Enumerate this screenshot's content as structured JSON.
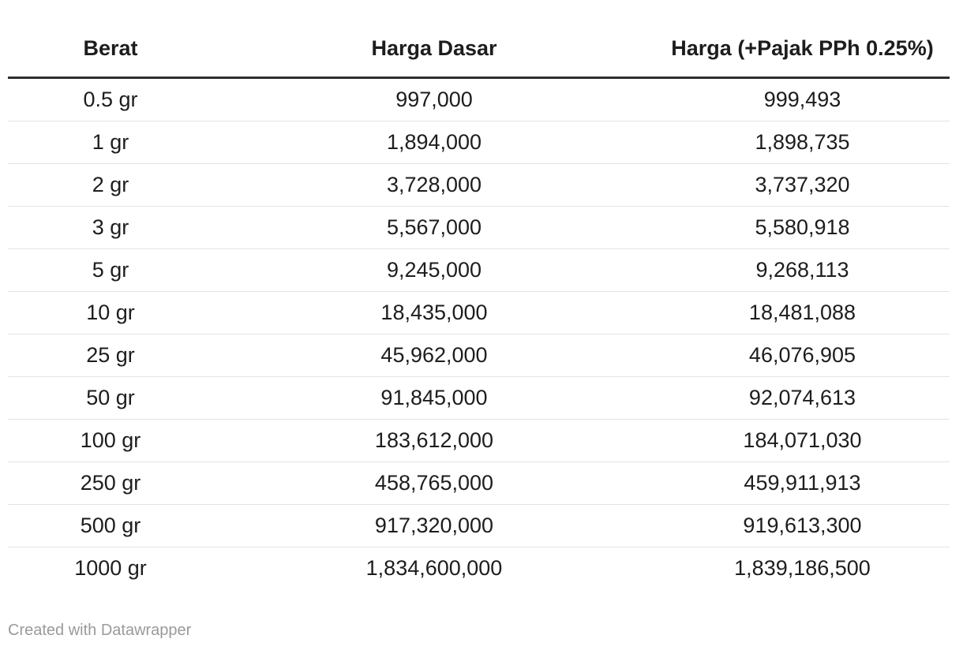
{
  "chart_data": {
    "type": "table",
    "columns": [
      "Berat",
      "Harga Dasar",
      "Harga (+Pajak PPh 0.25%)"
    ],
    "rows": [
      [
        "0.5 gr",
        "997,000",
        "999,493"
      ],
      [
        "1 gr",
        "1,894,000",
        "1,898,735"
      ],
      [
        "2 gr",
        "3,728,000",
        "3,737,320"
      ],
      [
        "3 gr",
        "5,567,000",
        "5,580,918"
      ],
      [
        "5 gr",
        "9,245,000",
        "9,268,113"
      ],
      [
        "10 gr",
        "18,435,000",
        "18,481,088"
      ],
      [
        "25 gr",
        "45,962,000",
        "46,076,905"
      ],
      [
        "50 gr",
        "91,845,000",
        "92,074,613"
      ],
      [
        "100 gr",
        "183,612,000",
        "184,071,030"
      ],
      [
        "250 gr",
        "458,765,000",
        "459,911,913"
      ],
      [
        "500 gr",
        "917,320,000",
        "919,613,300"
      ],
      [
        "1000 gr",
        "1,834,600,000",
        "1,839,186,500"
      ]
    ],
    "numeric": {
      "weights_gr": [
        0.5,
        1,
        2,
        3,
        5,
        10,
        25,
        50,
        100,
        250,
        500,
        1000
      ],
      "harga_dasar": [
        997000,
        1894000,
        3728000,
        5567000,
        9245000,
        18435000,
        45962000,
        91845000,
        183612000,
        458765000,
        917320000,
        1834600000
      ],
      "harga_plus_pajak": [
        999493,
        1898735,
        3737320,
        5580918,
        9268113,
        18481088,
        46076905,
        92074613,
        184071030,
        459911913,
        919613300,
        1839186500
      ]
    },
    "alignment": "center",
    "grid": "horizontal-row-dividers",
    "legend_position": "none",
    "title": ""
  },
  "footer": {
    "attribution": "Created with Datawrapper"
  },
  "colors": {
    "background": "#ffffff",
    "text": "#1d1d1d",
    "header_border": "#2e2e2e",
    "row_divider": "#e3e3e3",
    "footer_text": "#9a9a9a"
  }
}
